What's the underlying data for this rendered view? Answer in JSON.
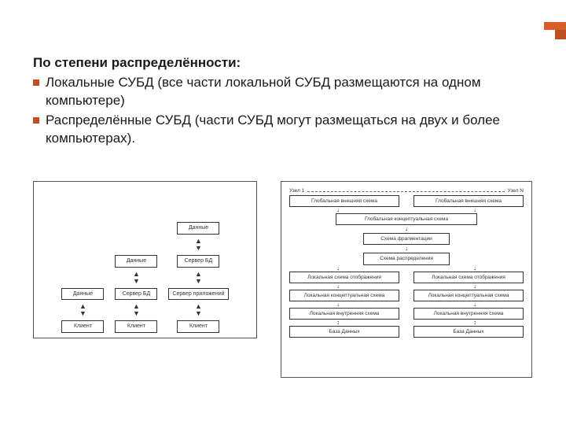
{
  "accent_color_main": "#d45d2a",
  "accent_color_dark": "#c04f1f",
  "heading": "По степени распределённости:",
  "bullets": [
    "Локальные СУБД (все части локальной СУБД размещаются на одном компьютере)",
    "Распределённые СУБД (части СУБД могут размещаться на двух и более компьютерах)."
  ],
  "figure_left": {
    "type": "flowchart",
    "columns": [
      {
        "boxes": [
          "Данные",
          "Клиент"
        ]
      },
      {
        "boxes": [
          "Данные",
          "Сервер БД",
          "Клиент"
        ]
      },
      {
        "boxes": [
          "Данные",
          "Сервер БД",
          "Сервер приложений",
          "Клиент"
        ]
      }
    ],
    "box_border_color": "#333333",
    "box_bg_color": "#ffffff",
    "font_size": 7
  },
  "figure_right": {
    "type": "flowchart",
    "top_labels": [
      "Узел 1",
      "Узел N"
    ],
    "top_boxes": [
      "Глобальная внешняя схема",
      "Глобальная внешняя схема"
    ],
    "mid_boxes": [
      "Глобальная концептуальная схема",
      "Схема фрагментации",
      "Схема распределения"
    ],
    "pair_rows": [
      [
        "Локальная схема отображения",
        "Локальная схема отображения"
      ],
      [
        "Локальная концептуальная схема",
        "Локальная концептуальная схема"
      ],
      [
        "Локальная внутренняя схема",
        "Локальная внутренняя схема"
      ],
      [
        "База Данных",
        "База Данных"
      ]
    ],
    "box_border_color": "#333333",
    "box_bg_color": "#ffffff",
    "font_size": 6.5
  }
}
